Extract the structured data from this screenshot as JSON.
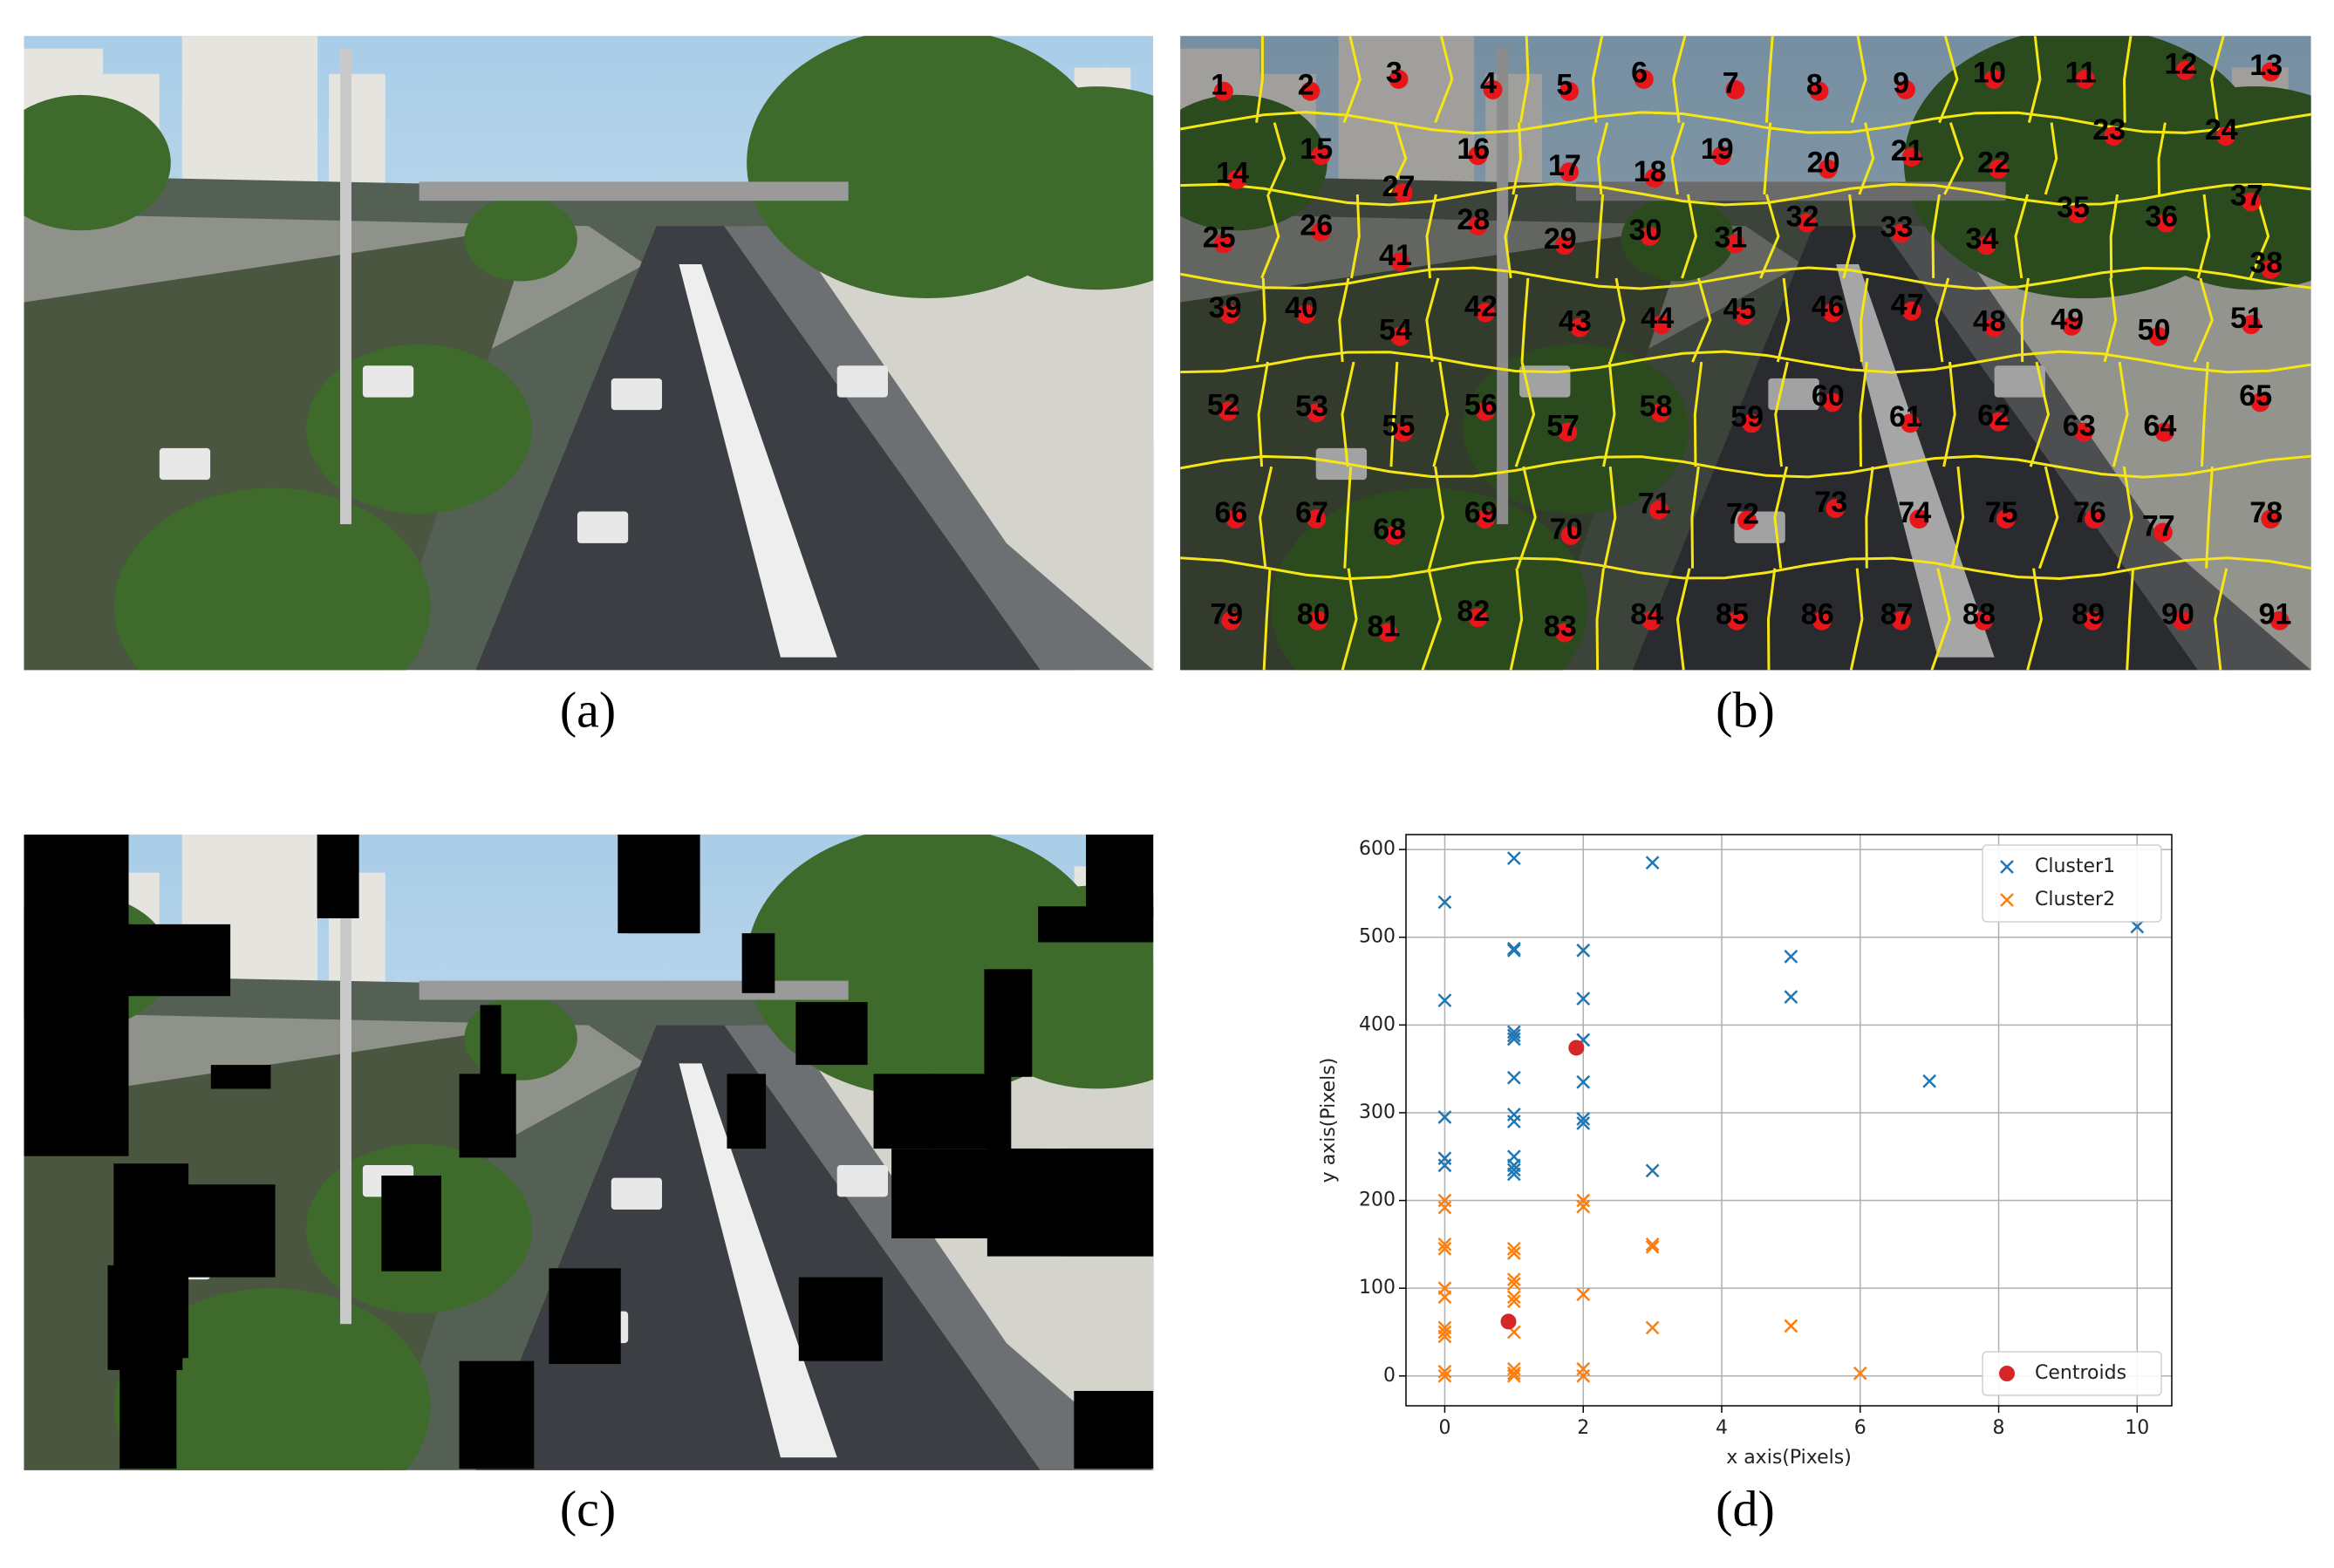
{
  "panel_labels": [
    "(a)",
    "(b)",
    "(c)",
    "(d)"
  ],
  "superpixel_labels": [
    1,
    2,
    3,
    4,
    5,
    6,
    7,
    8,
    9,
    10,
    11,
    12,
    13,
    14,
    15,
    16,
    17,
    18,
    19,
    20,
    21,
    22,
    23,
    24,
    25,
    26,
    27,
    28,
    29,
    30,
    31,
    32,
    33,
    34,
    35,
    36,
    37,
    38,
    39,
    40,
    41,
    42,
    43,
    44,
    45,
    46,
    47,
    48,
    49,
    50,
    51,
    52,
    53,
    54,
    55,
    56,
    57,
    58,
    59,
    60,
    61,
    62,
    63,
    64,
    65,
    66,
    67,
    68,
    69,
    70,
    71,
    72,
    73,
    74,
    75,
    76,
    77,
    78,
    79,
    80,
    81,
    82,
    83,
    84,
    85,
    86,
    87,
    88,
    89,
    90,
    91
  ],
  "chart_data": {
    "type": "scatter",
    "x_label": "x axis(Pixels)",
    "y_label": "y axis(Pixels)",
    "xlim": [
      -0.56,
      10.5
    ],
    "ylim": [
      -34,
      617
    ],
    "xticks": [
      0,
      2,
      4,
      6,
      8,
      10
    ],
    "yticks": [
      0,
      100,
      200,
      300,
      400,
      500,
      600
    ],
    "grid": true,
    "legend": "upper right",
    "series": [
      {
        "name": "Cluster1",
        "color": "#1f77b4",
        "marker": "x",
        "x": [
          0,
          0,
          0,
          0,
          0,
          1,
          1,
          1,
          1,
          1,
          1,
          1,
          1,
          1,
          1,
          1,
          1,
          1,
          2,
          2,
          2,
          2,
          2,
          2,
          3,
          3,
          5,
          5,
          7,
          10
        ],
        "values": [
          540,
          428,
          295,
          248,
          240,
          590,
          487,
          485,
          392,
          388,
          384,
          340,
          298,
          290,
          250,
          240,
          235,
          230,
          485,
          430,
          383,
          335,
          293,
          288,
          585,
          234,
          478,
          432,
          336,
          512
        ]
      },
      {
        "name": "Cluster2",
        "color": "#ff7f0e",
        "marker": "x",
        "x": [
          0,
          0,
          0,
          0,
          0,
          0,
          0,
          0,
          0,
          0,
          0,
          1,
          1,
          1,
          1,
          1,
          1,
          1,
          1,
          1,
          1,
          2,
          2,
          2,
          2,
          2,
          3,
          3,
          3,
          5,
          6
        ],
        "values": [
          200,
          192,
          150,
          145,
          100,
          90,
          55,
          50,
          45,
          5,
          0,
          145,
          140,
          110,
          105,
          90,
          85,
          50,
          8,
          3,
          0,
          200,
          193,
          93,
          8,
          0,
          150,
          147,
          55,
          57,
          3
        ]
      },
      {
        "name": "Centroids",
        "color": "#d62728",
        "marker": "o",
        "legend": "lower right",
        "x": [
          1.9,
          0.92
        ],
        "values": [
          374,
          62
        ]
      }
    ]
  }
}
